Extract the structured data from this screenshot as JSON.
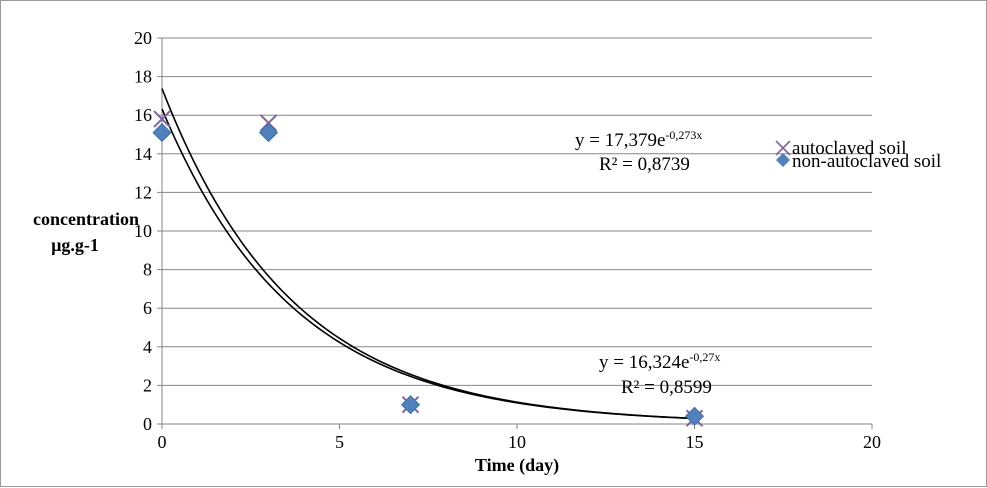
{
  "chart_data": {
    "type": "scatter",
    "title": "",
    "xlabel": "Time (day)",
    "ylabel": [
      "concentration",
      "µg.g-1"
    ],
    "xlim": [
      0,
      20
    ],
    "ylim": [
      0,
      20
    ],
    "xticks": [
      0,
      5,
      10,
      15,
      20
    ],
    "yticks": [
      0,
      2,
      4,
      6,
      8,
      10,
      12,
      14,
      16,
      18,
      20
    ],
    "grid": "horizontal",
    "legend_position": "right",
    "series": [
      {
        "name": "autoclaved soil",
        "marker": "x",
        "color": "#8064a2",
        "points": [
          [
            0,
            15.8
          ],
          [
            3,
            15.6
          ],
          [
            7,
            1.0
          ],
          [
            15,
            0.3
          ]
        ],
        "trendline": {
          "type": "exponential",
          "a": 17.379,
          "b": -0.273,
          "x_range": [
            0,
            15
          ]
        },
        "equation": {
          "base": "y = 17,379e",
          "exp": "-0,273x",
          "r2": "R² = 0,8739"
        }
      },
      {
        "name": "non-autoclaved soil",
        "marker": "diamond",
        "color": "#4f81bd",
        "points": [
          [
            0,
            15.1
          ],
          [
            3,
            15.1
          ],
          [
            7,
            1.0
          ],
          [
            15,
            0.4
          ]
        ],
        "trendline": {
          "type": "exponential",
          "a": 16.324,
          "b": -0.27,
          "x_range": [
            0,
            15
          ]
        },
        "equation": {
          "base": "y = 16,324e",
          "exp": "-0,27x",
          "r2": "R² = 0,8599"
        }
      }
    ]
  }
}
